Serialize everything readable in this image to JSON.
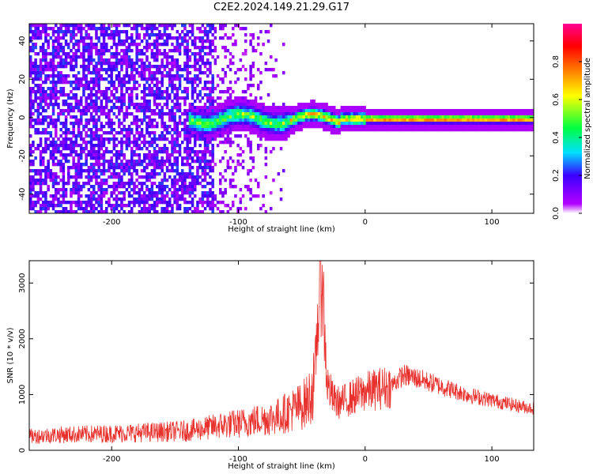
{
  "title": "C2E2.2024.149.21.29.G17",
  "chart_data": [
    {
      "type": "heatmap",
      "xlabel": "Height of straight line (km)",
      "ylabel": "Frequency (Hz)",
      "xlim": [
        -265,
        133
      ],
      "ylim": [
        -50,
        49
      ],
      "xticks": [
        -200,
        -100,
        0,
        100
      ],
      "yticks": [
        -40,
        -20,
        0,
        20,
        40
      ],
      "colorbar": {
        "label": "Normalized spectral amplitude",
        "range": [
          0,
          1
        ],
        "ticks": [
          "0.0",
          "0.2",
          "0.4",
          "0.6",
          "0.8"
        ],
        "stops": [
          "#ffffff",
          "#b400ff",
          "#3a00ff",
          "#00e0ff",
          "#00ff40",
          "#ffff00",
          "#ff8000",
          "#ff0000",
          "#ff0090"
        ]
      },
      "features": {
        "noise_region_x": [
          -265,
          -120
        ],
        "transition_region_x": [
          -120,
          -60
        ],
        "signal_line_frequency_hz": 0,
        "signal_start_x": -140
      }
    },
    {
      "type": "line",
      "xlabel": "Height of straight line (km)",
      "ylabel": "SNR (10 * v/v)",
      "xlim": [
        -265,
        133
      ],
      "ylim": [
        0,
        3400
      ],
      "xticks": [
        -200,
        -100,
        0,
        100
      ],
      "yticks": [
        0,
        1000,
        2000,
        3000
      ],
      "color": "#e8302c",
      "series": [
        {
          "x": [
            -265,
            -240,
            -200,
            -160,
            -140,
            -120,
            -110,
            -100,
            -90,
            -80,
            -70,
            -60,
            -55,
            -50,
            -45,
            -40,
            -38,
            -36,
            -34,
            -32,
            -30,
            -25,
            -20,
            -10,
            0,
            10,
            20,
            30,
            40,
            60,
            80,
            100,
            120,
            133
          ],
          "y": [
            250,
            280,
            300,
            330,
            350,
            420,
            460,
            480,
            520,
            560,
            600,
            700,
            750,
            800,
            900,
            1200,
            2100,
            2800,
            3300,
            2100,
            1200,
            900,
            850,
            950,
            1050,
            1100,
            1150,
            1350,
            1300,
            1150,
            1000,
            900,
            800,
            750
          ]
        }
      ]
    }
  ]
}
